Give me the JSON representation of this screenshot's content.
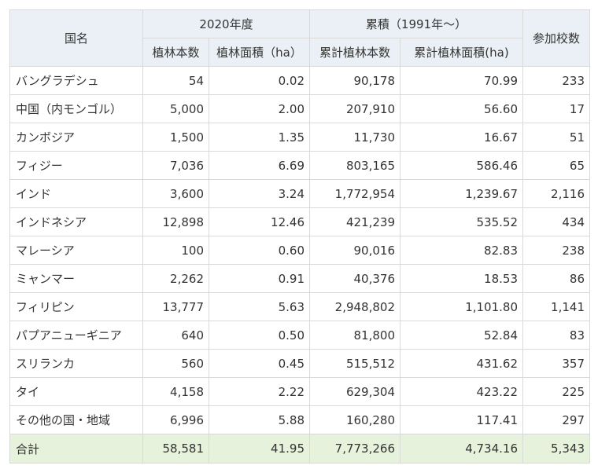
{
  "table": {
    "headers": {
      "country": "国名",
      "group_2020": "2020年度",
      "group_cumulative": "累積（1991年～）",
      "schools": "参加校数",
      "sub": [
        "植林本数",
        "植林面積（ha）",
        "累計植林本数",
        "累計植林面積(ha)"
      ]
    },
    "rows": [
      [
        "バングラデシュ",
        "54",
        "0.02",
        "90,178",
        "70.99",
        "233"
      ],
      [
        "中国（内モンゴル）",
        "5,000",
        "2.00",
        "207,910",
        "56.60",
        "17"
      ],
      [
        "カンボジア",
        "1,500",
        "1.35",
        "11,730",
        "16.67",
        "51"
      ],
      [
        "フィジー",
        "7,036",
        "6.69",
        "803,165",
        "586.46",
        "65"
      ],
      [
        "インド",
        "3,600",
        "3.24",
        "1,772,954",
        "1,239.67",
        "2,116"
      ],
      [
        "インドネシア",
        "12,898",
        "12.46",
        "421,239",
        "535.52",
        "434"
      ],
      [
        "マレーシア",
        "100",
        "0.60",
        "90,016",
        "82.83",
        "238"
      ],
      [
        "ミャンマー",
        "2,262",
        "0.91",
        "40,376",
        "18.53",
        "86"
      ],
      [
        "フィリピン",
        "13,777",
        "5.63",
        "2,948,802",
        "1,101.80",
        "1,141"
      ],
      [
        "パプアニューギニア",
        "640",
        "0.50",
        "81,800",
        "52.84",
        "83"
      ],
      [
        "スリランカ",
        "560",
        "0.45",
        "515,512",
        "431.62",
        "357"
      ],
      [
        "タイ",
        "4,158",
        "2.22",
        "629,304",
        "423.22",
        "225"
      ],
      [
        "その他の国・地域",
        "6,996",
        "5.88",
        "160,280",
        "117.41",
        "297"
      ]
    ],
    "total": [
      "合計",
      "58,581",
      "41.95",
      "7,773,266",
      "4,734.16",
      "5,343"
    ]
  }
}
